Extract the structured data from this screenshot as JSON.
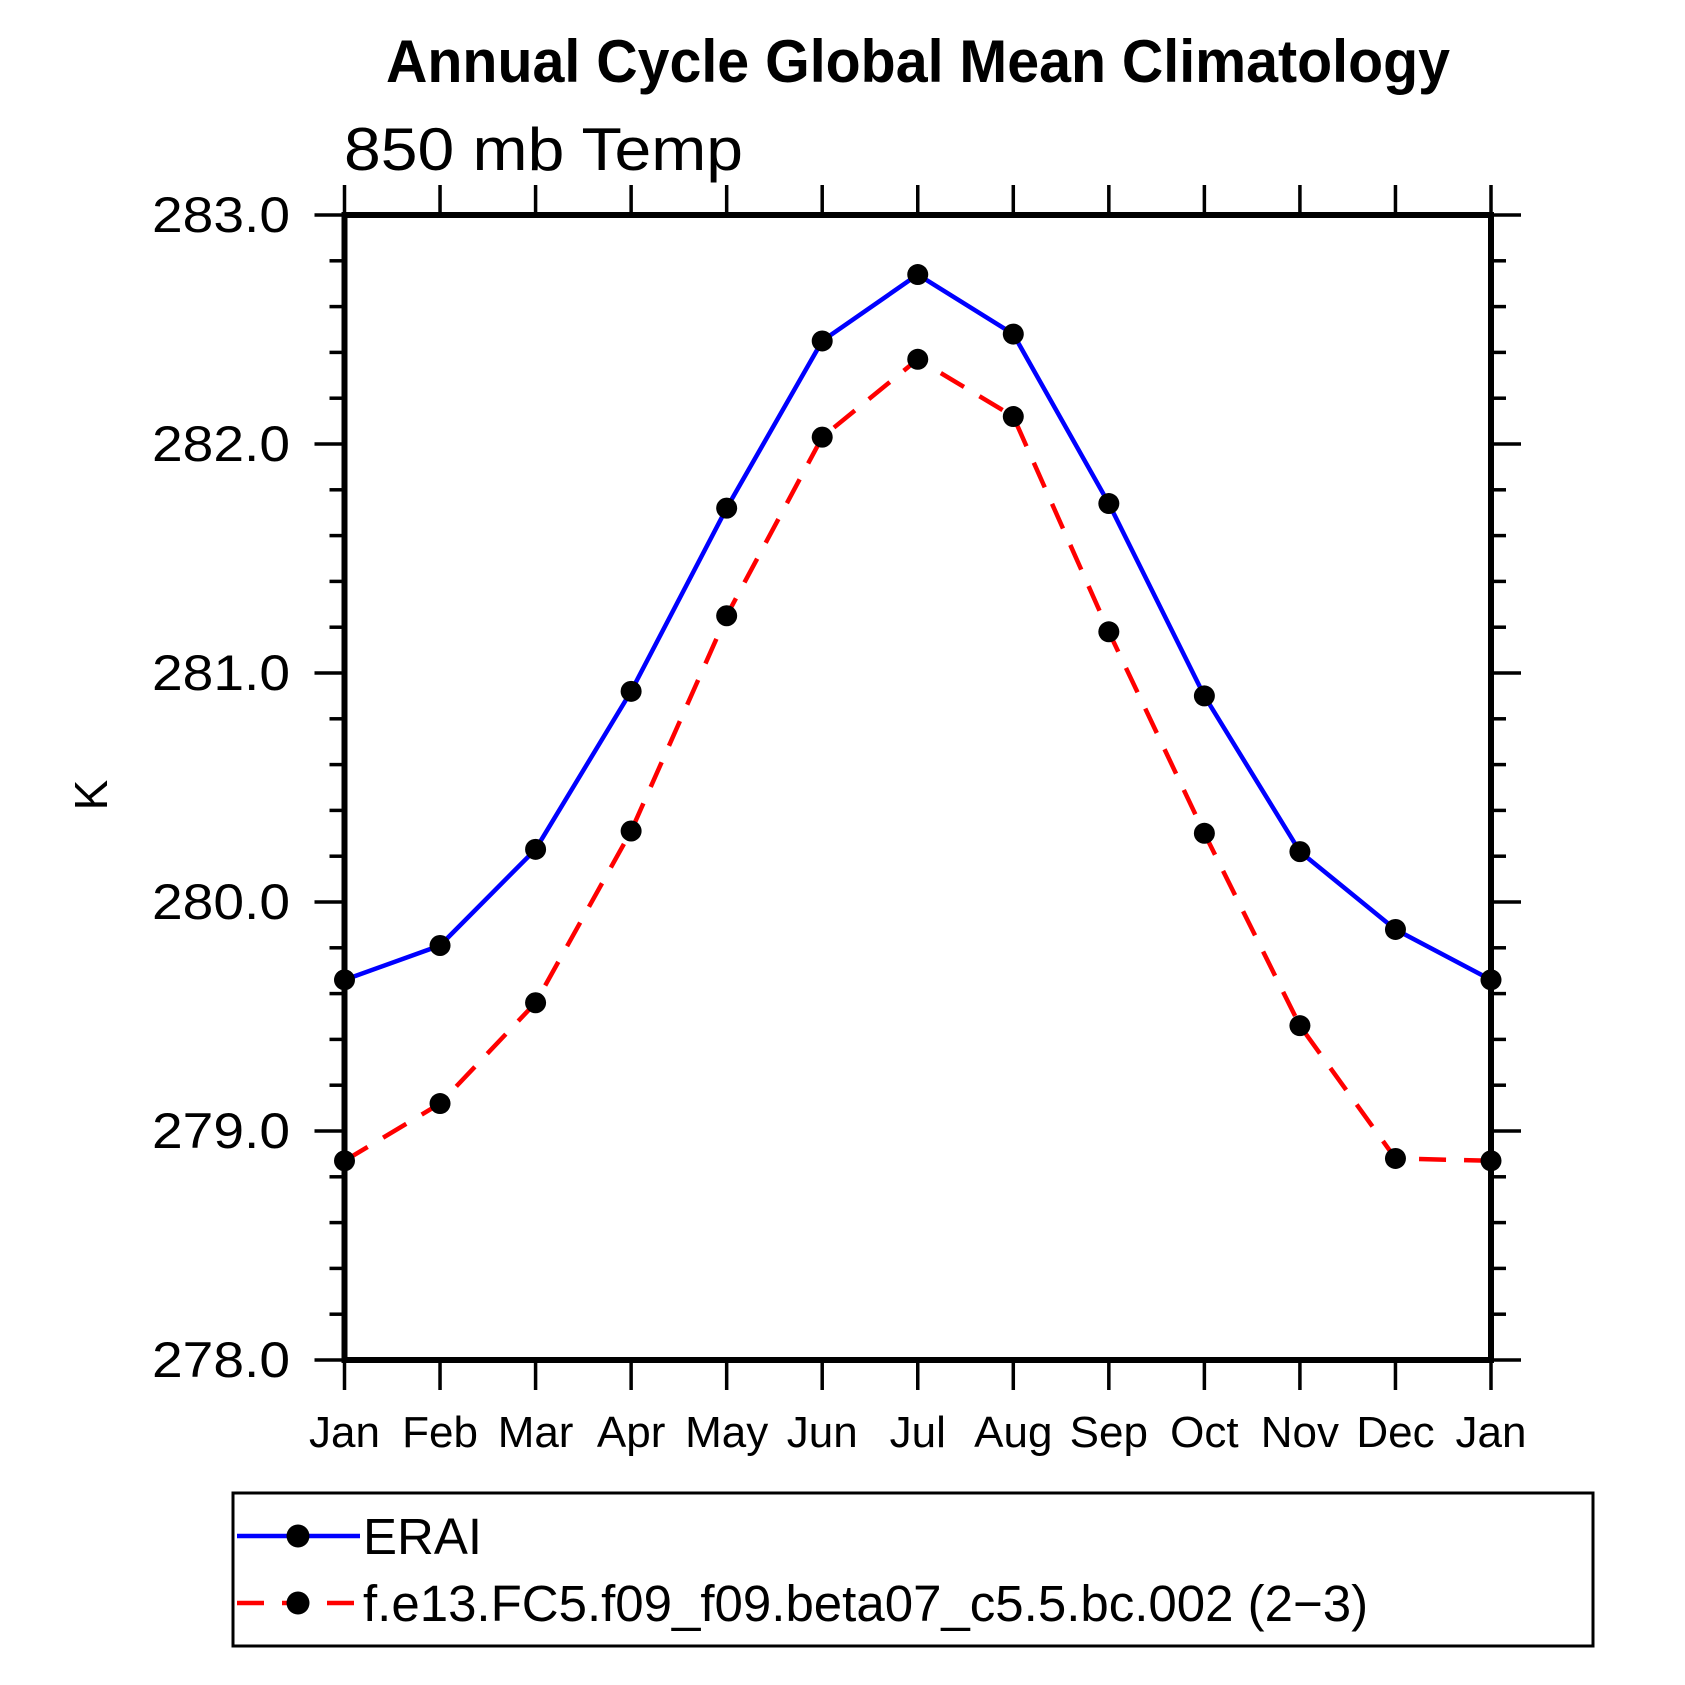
{
  "page": {
    "background_color": "#ffffff"
  },
  "chart_data": {
    "type": "line",
    "title": "Annual Cycle Global Mean Climatology",
    "subtitle": "850 mb Temp",
    "ylabel": "K",
    "xlabel": "",
    "categories": [
      "Jan",
      "Feb",
      "Mar",
      "Apr",
      "May",
      "Jun",
      "Jul",
      "Aug",
      "Sep",
      "Oct",
      "Nov",
      "Dec",
      "Jan"
    ],
    "ylim": [
      278.0,
      283.0
    ],
    "ytick_interval": 1.0,
    "ytick_minor_interval": 0.2,
    "ytick_labels": [
      "278.0",
      "279.0",
      "280.0",
      "281.0",
      "282.0",
      "283.0"
    ],
    "grid": false,
    "legend_position": "bottom",
    "axis_color": "#000000",
    "marker_shape": "filled-circle",
    "marker_color": "#000000",
    "series": [
      {
        "name": "ERAI",
        "color": "#0000ff",
        "line_style": "solid",
        "values": [
          279.66,
          279.81,
          280.23,
          280.92,
          281.72,
          282.45,
          282.74,
          282.48,
          281.74,
          280.9,
          280.22,
          279.88,
          279.66
        ]
      },
      {
        "name": "f.e13.FC5.f09_f09.beta07_c5.5.bc.002 (2−3)",
        "color": "#ff0000",
        "line_style": "dashed",
        "values": [
          278.87,
          279.12,
          279.56,
          280.31,
          281.25,
          282.03,
          282.37,
          282.12,
          281.18,
          280.3,
          279.46,
          278.88,
          278.87
        ]
      }
    ]
  }
}
